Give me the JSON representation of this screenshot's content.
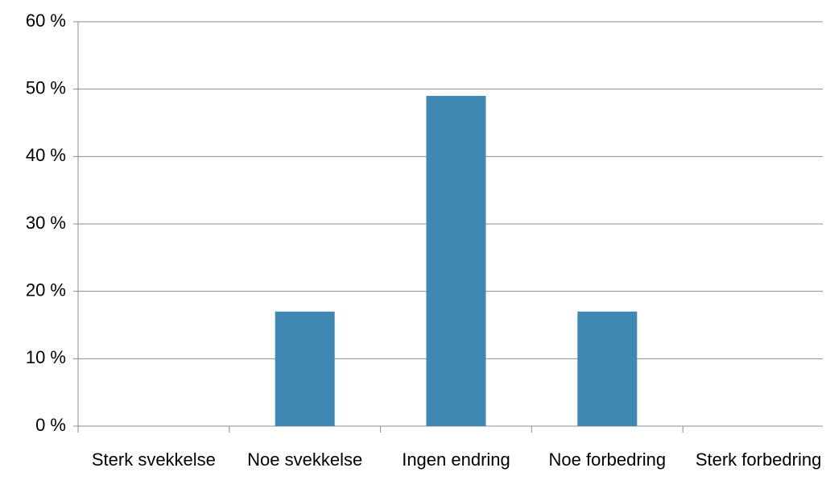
{
  "chart_data": {
    "type": "bar",
    "categories": [
      "Sterk svekkelse",
      "Noe svekkelse",
      "Ingen endring",
      "Noe forbedring",
      "Sterk forbedring"
    ],
    "values": [
      0,
      17,
      49,
      17,
      0
    ],
    "color": "#3f88b3",
    "ylim": [
      0,
      60
    ],
    "yticks": [
      {
        "value": 0,
        "label": "0 %"
      },
      {
        "value": 10,
        "label": "10 %"
      },
      {
        "value": 20,
        "label": "20 %"
      },
      {
        "value": 30,
        "label": "30 %"
      },
      {
        "value": 40,
        "label": "40 %"
      },
      {
        "value": 50,
        "label": "50 %"
      },
      {
        "value": 60,
        "label": "60 %"
      }
    ],
    "grid": true
  }
}
